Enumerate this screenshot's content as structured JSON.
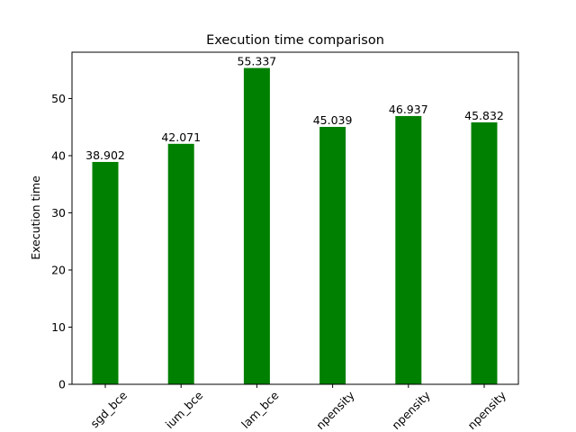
{
  "chart_data": {
    "type": "bar",
    "title": "Execution time comparison",
    "xlabel": "",
    "ylabel": "Execution time",
    "categories": [
      "sgd_bce",
      "momentum_bce",
      "adam_bce",
      "sgd_propensity",
      "momentum_propensity",
      "adam_propensity"
    ],
    "category_labels_visible": [
      "sgd_bce",
      "ium_bce",
      "lam_bce",
      "npensity",
      "npensity",
      "npensity"
    ],
    "values": [
      38.902,
      42.071,
      55.337,
      45.039,
      46.937,
      45.832
    ],
    "value_labels": [
      "38.902",
      "42.071",
      "55.337",
      "45.039",
      "46.937",
      "45.832"
    ],
    "ylim": [
      0,
      58.104
    ],
    "yticks": [
      0,
      10,
      20,
      30,
      40,
      50
    ],
    "bar_color": "#008000",
    "grid": false,
    "legend": "none"
  }
}
